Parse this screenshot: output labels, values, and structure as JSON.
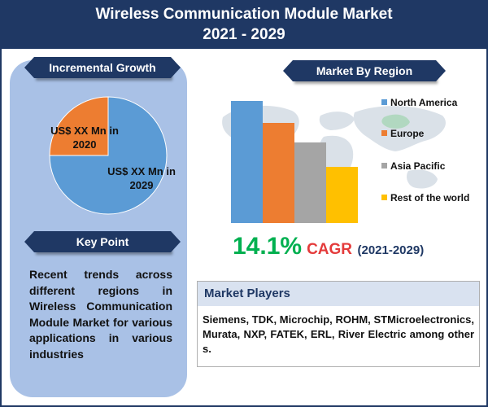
{
  "header": {
    "title_line1": "Wireless Communication Module Market",
    "title_line2": "2021 - 2029"
  },
  "incremental_growth": {
    "heading": "Incremental Growth",
    "label_2020": "US$ XX Mn in 2020",
    "label_2029": "US$ XX Mn in 2029"
  },
  "key_point": {
    "heading": "Key Point",
    "text": "Recent trends across different regions in Wireless Communication Module Market for various applications in various industries"
  },
  "region": {
    "heading": "Market By Region"
  },
  "cagr": {
    "value": "14.1%",
    "label": "CAGR",
    "period": "(2021-2029)"
  },
  "players": {
    "heading": "Market Players",
    "text": "Siemens, TDK, Microchip, ROHM, STMicroelectronics, Murata, NXP, FATEK, ERL, River Electric among others."
  },
  "colors": {
    "navy": "#1f3864",
    "north_america": "#5b9bd5",
    "europe": "#ed7d31",
    "asia_pacific": "#a5a5a5",
    "rest_of_world": "#ffc000",
    "cagr_green": "#00b050",
    "cagr_red": "#e43b3b"
  },
  "chart_data": [
    {
      "type": "pie",
      "title": "Incremental Growth",
      "categories": [
        "2020",
        "2029"
      ],
      "values": [
        25,
        75
      ],
      "colors": [
        "#ed7d31",
        "#5b9bd5"
      ]
    },
    {
      "type": "bar",
      "title": "Market By Region",
      "categories": [
        "North America",
        "Europe",
        "Asia Pacific",
        "Rest of the world"
      ],
      "values": [
        100,
        82,
        66,
        46
      ],
      "colors": [
        "#5b9bd5",
        "#ed7d31",
        "#a5a5a5",
        "#ffc000"
      ],
      "legend": "right"
    }
  ]
}
